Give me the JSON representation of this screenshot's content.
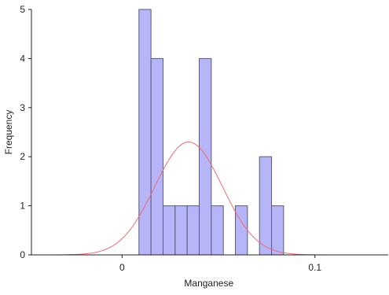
{
  "chart_data": {
    "type": "bar",
    "subtype": "histogram",
    "xlabel": "Manganese",
    "ylabel": "Frequency",
    "xlim": [
      -0.047,
      0.138
    ],
    "ylim": [
      0,
      5
    ],
    "x_ticks": [
      0,
      0.1
    ],
    "x_tick_labels": [
      "0",
      "0.1"
    ],
    "y_ticks": [
      0,
      1,
      2,
      3,
      4,
      5
    ],
    "y_tick_labels": [
      "0",
      "1",
      "2",
      "3",
      "4",
      "5"
    ],
    "bin_width": 0.00625,
    "bins": [
      {
        "x0": 0.00875,
        "x1": 0.015,
        "count": 5
      },
      {
        "x0": 0.015,
        "x1": 0.02125,
        "count": 4
      },
      {
        "x0": 0.02125,
        "x1": 0.0275,
        "count": 1
      },
      {
        "x0": 0.0275,
        "x1": 0.03375,
        "count": 1
      },
      {
        "x0": 0.03375,
        "x1": 0.04,
        "count": 1
      },
      {
        "x0": 0.04,
        "x1": 0.04625,
        "count": 4
      },
      {
        "x0": 0.04625,
        "x1": 0.0525,
        "count": 1
      },
      {
        "x0": 0.05875,
        "x1": 0.065,
        "count": 1
      },
      {
        "x0": 0.07125,
        "x1": 0.0775,
        "count": 2
      },
      {
        "x0": 0.0775,
        "x1": 0.08375,
        "count": 1
      }
    ],
    "normal_curve": {
      "mean": 0.0345,
      "sd": 0.0175,
      "peak": 2.3
    },
    "grid": false,
    "legend": "none",
    "colors": {
      "bar_fill": "#b5b5f7",
      "bar_stroke": "#5a5a80",
      "curve": "#f06a72",
      "axis": "#222222"
    }
  }
}
